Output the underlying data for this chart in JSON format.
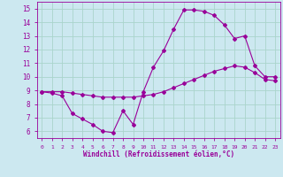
{
  "xlabel": "Windchill (Refroidissement éolien,°C)",
  "xlim": [
    -0.5,
    23.5
  ],
  "ylim": [
    5.5,
    15.5
  ],
  "xticks": [
    0,
    1,
    2,
    3,
    4,
    5,
    6,
    7,
    8,
    9,
    10,
    11,
    12,
    13,
    14,
    15,
    16,
    17,
    18,
    19,
    20,
    21,
    22,
    23
  ],
  "yticks": [
    6,
    7,
    8,
    9,
    10,
    11,
    12,
    13,
    14,
    15
  ],
  "bg_color": "#cce8f0",
  "line_color": "#990099",
  "grid_color": "#aad4cc",
  "line1_x": [
    0,
    1,
    2,
    3,
    4,
    5,
    6,
    7,
    8,
    9,
    10,
    11,
    12,
    13,
    14,
    15,
    16,
    17,
    18,
    19,
    20,
    21,
    22,
    23
  ],
  "line1_y": [
    8.9,
    8.8,
    8.6,
    7.3,
    6.9,
    6.5,
    6.0,
    5.9,
    7.5,
    6.5,
    8.9,
    10.7,
    11.9,
    13.5,
    14.9,
    14.9,
    14.8,
    14.5,
    13.8,
    12.8,
    13.0,
    10.8,
    10.0,
    10.0
  ],
  "line2_x": [
    0,
    1,
    2,
    3,
    4,
    5,
    6,
    7,
    8,
    9,
    10,
    11,
    12,
    13,
    14,
    15,
    16,
    17,
    18,
    19,
    20,
    21,
    22,
    23
  ],
  "line2_y": [
    8.9,
    8.9,
    8.9,
    8.8,
    8.7,
    8.6,
    8.5,
    8.5,
    8.5,
    8.5,
    8.6,
    8.7,
    8.9,
    9.2,
    9.5,
    9.8,
    10.1,
    10.4,
    10.6,
    10.8,
    10.7,
    10.3,
    9.8,
    9.7
  ]
}
